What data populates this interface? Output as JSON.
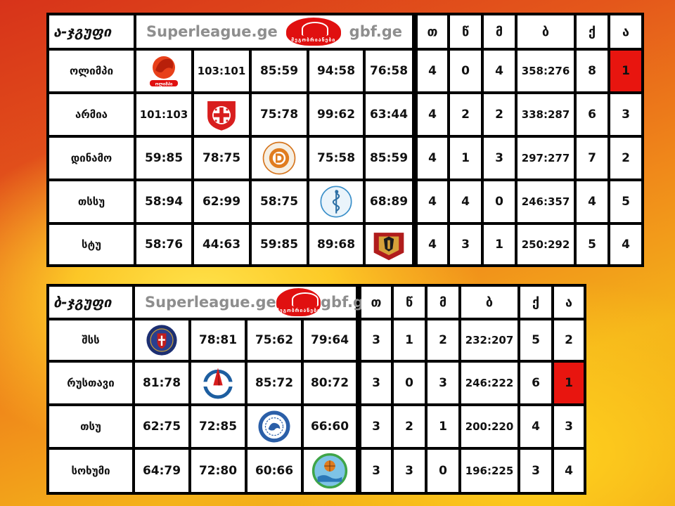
{
  "groupA": {
    "title": "ა-ჯგუფი",
    "banner": {
      "left": "Superleague.ge",
      "right": "gbf.ge",
      "logo_text": "მეგობრიანები"
    },
    "headers": [
      "თ",
      "წ",
      "მ",
      "ბ",
      "ქ",
      "ა"
    ],
    "rows": [
      {
        "team": "ოლიმპი",
        "cells": [
          "",
          "103:101",
          "85:59",
          "94:58",
          "76:58"
        ],
        "t": "4",
        "w": "0",
        "m": "4",
        "b": "358:276",
        "q": "8",
        "a": "1",
        "highlight": true,
        "logo": "olimpi-logo",
        "logo_text": "ოლიმპი"
      },
      {
        "team": "არმია",
        "cells": [
          "101:103",
          "",
          "75:78",
          "99:62",
          "63:44"
        ],
        "t": "4",
        "w": "2",
        "m": "2",
        "b": "338:287",
        "q": "6",
        "a": "3",
        "logo": "armia-logo"
      },
      {
        "team": "დინამო",
        "cells": [
          "59:85",
          "78:75",
          "",
          "75:58",
          "85:59"
        ],
        "t": "4",
        "w": "1",
        "m": "3",
        "b": "297:277",
        "q": "7",
        "a": "2",
        "logo": "dinamo-logo"
      },
      {
        "team": "თსსუ",
        "cells": [
          "58:94",
          "62:99",
          "58:75",
          "",
          "68:89"
        ],
        "t": "4",
        "w": "4",
        "m": "0",
        "b": "246:357",
        "q": "4",
        "a": "5",
        "logo": "tssu-logo"
      },
      {
        "team": "სტუ",
        "cells": [
          "58:76",
          "44:63",
          "59:85",
          "89:68",
          ""
        ],
        "t": "4",
        "w": "3",
        "m": "1",
        "b": "250:292",
        "q": "5",
        "a": "4",
        "logo": "stu-logo"
      }
    ]
  },
  "groupB": {
    "title": "ბ-ჯგუფი",
    "banner": {
      "left": "Superleague.ge",
      "right": "gbf.ge",
      "logo_text": "მეგობრიანები"
    },
    "headers": [
      "თ",
      "წ",
      "მ",
      "ბ",
      "ქ",
      "ა"
    ],
    "rows": [
      {
        "team": "შსს",
        "cells": [
          "",
          "78:81",
          "75:62",
          "79:64"
        ],
        "t": "3",
        "w": "1",
        "m": "2",
        "b": "232:207",
        "q": "5",
        "a": "2",
        "logo": "shss-logo"
      },
      {
        "team": "რუსთავი",
        "cells": [
          "81:78",
          "",
          "85:72",
          "80:72"
        ],
        "t": "3",
        "w": "0",
        "m": "3",
        "b": "246:222",
        "q": "6",
        "a": "1",
        "highlight": true,
        "logo": "rustavi-logo"
      },
      {
        "team": "თსუ",
        "cells": [
          "62:75",
          "72:85",
          "",
          "66:60"
        ],
        "t": "3",
        "w": "2",
        "m": "1",
        "b": "200:220",
        "q": "4",
        "a": "3",
        "logo": "tsu-logo"
      },
      {
        "team": "სოხუმი",
        "cells": [
          "64:79",
          "72:80",
          "60:66",
          ""
        ],
        "t": "3",
        "w": "3",
        "m": "0",
        "b": "196:225",
        "q": "3",
        "a": "4",
        "logo": "sokhumi-logo"
      }
    ]
  },
  "colors": {
    "highlight": "#e8150f",
    "banner_text": "#8e8e8e",
    "logo_red": "#e01010"
  }
}
